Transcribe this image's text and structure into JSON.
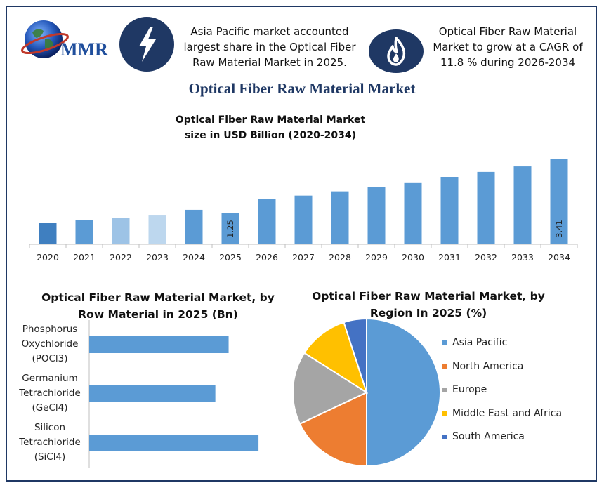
{
  "header": {
    "logo_text": "MMR",
    "info_left": [
      "Asia Pacific market accounted",
      "largest share in the Optical Fiber",
      "Raw Material Market in 2025."
    ],
    "info_right": [
      "Optical Fiber Raw Material",
      "Market to grow at a CAGR of",
      "11.8 % during 2026-2034"
    ]
  },
  "main_title": "Optical Fiber Raw Material Market",
  "colors": {
    "navy": "#1f3864",
    "bar_blue": "#5b9bd5",
    "bar_2020": "#3f7fc0",
    "bar_2022": "#9dc3e6",
    "bar_2023": "#bdd7ee"
  },
  "icons": {
    "left": "lightning-bolt-icon",
    "right": "flame-icon"
  },
  "chart_data": [
    {
      "type": "bar",
      "title_lines": [
        "Optical Fiber Raw Material Market",
        "size in USD Billion (2020-2034)"
      ],
      "categories": [
        "2020",
        "2021",
        "2022",
        "2023",
        "2024",
        "2025",
        "2026",
        "2027",
        "2028",
        "2029",
        "2030",
        "2031",
        "2032",
        "2033",
        "2034"
      ],
      "values": [
        0.85,
        0.96,
        1.06,
        1.18,
        1.38,
        1.25,
        1.8,
        1.95,
        2.12,
        2.3,
        2.48,
        2.7,
        2.9,
        3.12,
        3.41
      ],
      "data_labels": {
        "5": "1.25",
        "14": "3.41"
      },
      "ylim": [
        0,
        3.6
      ]
    },
    {
      "type": "bar",
      "orientation": "horizontal",
      "title_lines": [
        "Optical Fiber Raw Material Market, by",
        "Row Material in 2025 (Bn)"
      ],
      "categories": [
        [
          "Phosphorus",
          "Oxychloride",
          "(POCl3)"
        ],
        [
          "Germanium",
          "Tetrachloride",
          "(GeCl4)"
        ],
        [
          "Silicon",
          "Tetrachloride",
          "(SiCl4)"
        ]
      ],
      "values": [
        0.42,
        0.38,
        0.51
      ],
      "xlim": [
        0,
        0.55
      ]
    },
    {
      "type": "pie",
      "title_lines": [
        "Optical Fiber Raw Material Market, by",
        "Region In 2025 (%)"
      ],
      "labels": [
        "Asia Pacific",
        "North America",
        "Europe",
        "Middle East and Africa",
        "South America"
      ],
      "values": [
        50,
        18,
        16,
        11,
        5
      ],
      "colors": [
        "#5b9bd5",
        "#ed7d31",
        "#a5a5a5",
        "#ffc000",
        "#4472c4"
      ],
      "legend": "right"
    }
  ]
}
